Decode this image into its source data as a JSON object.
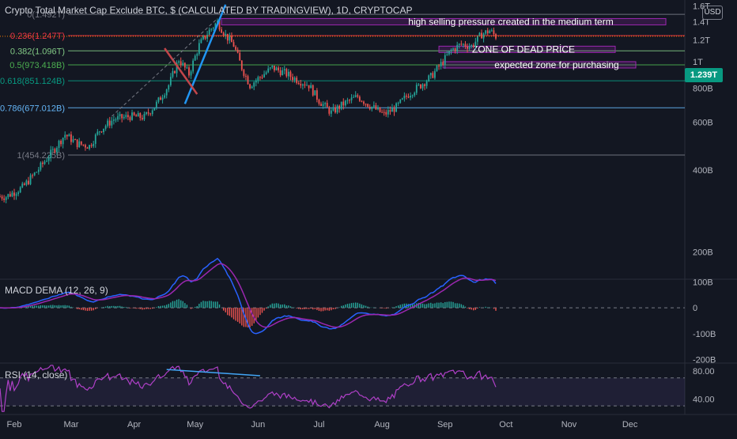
{
  "header": {
    "title": "Crypto Total Market Cap Exclude BTC, $ (CALCULATED BY TRADINGVIEW), 1D, CRYPTOCAP",
    "currency": "USD",
    "current_price": "1.239T"
  },
  "colors": {
    "background": "#131722",
    "up_candle": "#26a69a",
    "down_candle": "#ef5350",
    "annotation_box": "#9c27b0",
    "trendline": "#2196f3",
    "macd_line": "#2962ff",
    "signal_line": "#9c27b0",
    "rsi_line": "#b040c8",
    "current_price_line": "#f57c00"
  },
  "chart_data": [
    {
      "type": "candlestick",
      "x_labels": [
        "Feb",
        "Mar",
        "Apr",
        "May",
        "Jun",
        "Jul",
        "Aug",
        "Sep",
        "Oct",
        "Nov",
        "Dec"
      ],
      "y_scale": "log",
      "y_tick_labels": [
        "1.6T",
        "1.4T",
        "1.2T",
        "1T",
        "800B",
        "600B",
        "400B",
        "200B"
      ],
      "y_ticks": [
        1600,
        1400,
        1200,
        1000,
        800,
        600,
        400,
        200
      ],
      "ylim": [
        160,
        1640
      ],
      "close_series": [
        {
          "date": "2023-01-28",
          "value": 320
        },
        {
          "date": "2023-02-05",
          "value": 345
        },
        {
          "date": "2023-02-12",
          "value": 395
        },
        {
          "date": "2023-02-20",
          "value": 470
        },
        {
          "date": "2023-02-26",
          "value": 540
        },
        {
          "date": "2023-03-04",
          "value": 500
        },
        {
          "date": "2023-03-10",
          "value": 490
        },
        {
          "date": "2023-03-15",
          "value": 560
        },
        {
          "date": "2023-03-22",
          "value": 615
        },
        {
          "date": "2023-03-30",
          "value": 630
        },
        {
          "date": "2023-04-06",
          "value": 625
        },
        {
          "date": "2023-04-12",
          "value": 700
        },
        {
          "date": "2023-04-18",
          "value": 820
        },
        {
          "date": "2023-04-23",
          "value": 1020
        },
        {
          "date": "2023-04-28",
          "value": 900
        },
        {
          "date": "2023-05-03",
          "value": 1150
        },
        {
          "date": "2023-05-08",
          "value": 1300
        },
        {
          "date": "2023-05-12",
          "value": 1400
        },
        {
          "date": "2023-05-16",
          "value": 1250
        },
        {
          "date": "2023-05-20",
          "value": 1150
        },
        {
          "date": "2023-05-24",
          "value": 950
        },
        {
          "date": "2023-05-28",
          "value": 820
        },
        {
          "date": "2023-06-02",
          "value": 880
        },
        {
          "date": "2023-06-08",
          "value": 950
        },
        {
          "date": "2023-06-14",
          "value": 910
        },
        {
          "date": "2023-06-20",
          "value": 860
        },
        {
          "date": "2023-06-26",
          "value": 820
        },
        {
          "date": "2023-07-01",
          "value": 720
        },
        {
          "date": "2023-07-07",
          "value": 650
        },
        {
          "date": "2023-07-13",
          "value": 700
        },
        {
          "date": "2023-07-20",
          "value": 745
        },
        {
          "date": "2023-07-26",
          "value": 690
        },
        {
          "date": "2023-08-02",
          "value": 640
        },
        {
          "date": "2023-08-08",
          "value": 680
        },
        {
          "date": "2023-08-14",
          "value": 760
        },
        {
          "date": "2023-08-20",
          "value": 820
        },
        {
          "date": "2023-08-25",
          "value": 880
        },
        {
          "date": "2023-08-30",
          "value": 980
        },
        {
          "date": "2023-09-04",
          "value": 1100
        },
        {
          "date": "2023-09-09",
          "value": 1160
        },
        {
          "date": "2023-09-14",
          "value": 1140
        },
        {
          "date": "2023-09-19",
          "value": 1260
        },
        {
          "date": "2023-09-23",
          "value": 1300
        },
        {
          "date": "2023-09-26",
          "value": 1239
        }
      ],
      "fib_levels": [
        {
          "label": "0(1.492T)",
          "value": 1492
        },
        {
          "label": "0.236(1.247T)",
          "value": 1247
        },
        {
          "label": "0.382(1.096T)",
          "value": 1096
        },
        {
          "label": "0.5(973.418B)",
          "value": 973.418
        },
        {
          "label": "0.618(851.124B)",
          "value": 851.124
        },
        {
          "label": "0.786(677.012B)",
          "value": 677.012
        },
        {
          "label": "1(454.225B)",
          "value": 454.225
        }
      ],
      "annotations": [
        {
          "text": "high selling pressure created in the medium term",
          "low": 1380,
          "high": 1440
        },
        {
          "text": "ZONE OF DEAD PRİCE",
          "low": 1090,
          "high": 1140
        },
        {
          "text": "expected zone for purchasing",
          "low": 980,
          "high": 1000
        }
      ]
    },
    {
      "type": "line",
      "title": "MACD DEMA (12, 26, 9)",
      "y_tick_labels": [
        "100B",
        "0",
        "-100B",
        "-200B"
      ],
      "y_ticks": [
        100,
        0,
        -100,
        -200
      ],
      "ylim": [
        -210,
        110
      ]
    },
    {
      "type": "line",
      "title": "RSI (14, close)",
      "y_tick_labels": [
        "80.00",
        "40.00"
      ],
      "y_ticks": [
        80,
        40
      ],
      "ylim": [
        20,
        90
      ]
    }
  ]
}
